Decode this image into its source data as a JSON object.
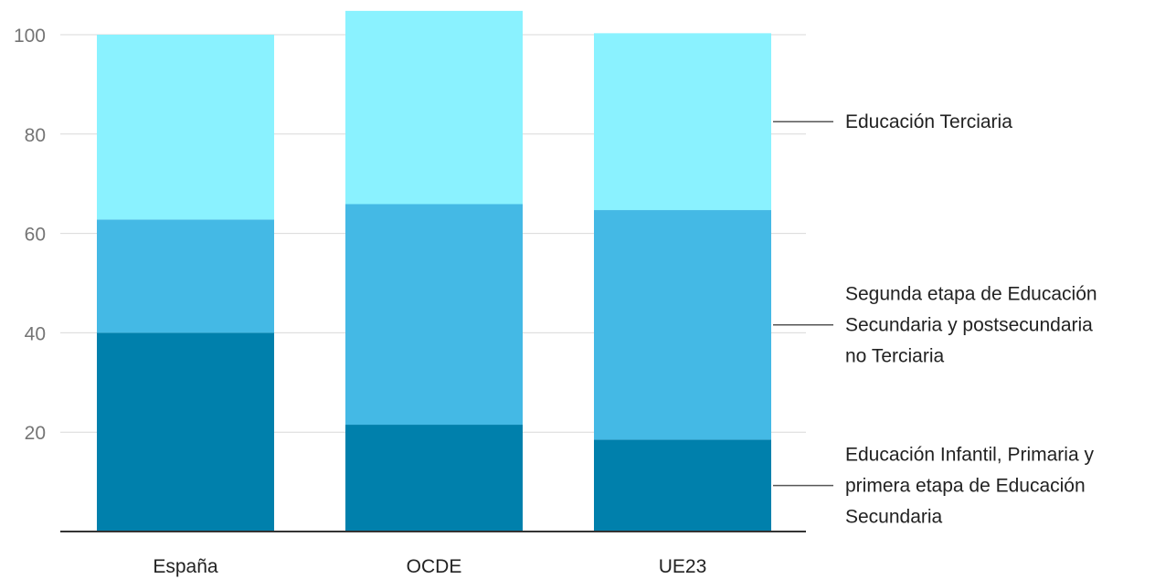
{
  "chart_data": {
    "type": "bar",
    "stacked": true,
    "categories": [
      "España",
      "OCDE",
      "UE23"
    ],
    "series": [
      {
        "name": "Educación Infantil, Primaria y primera etapa de Educación Secundaria",
        "label_lines": [
          "Educación Infantil, Primaria y",
          "primera etapa de Educación",
          "Secundaria"
        ],
        "color": "#0080AC",
        "values": [
          40,
          21.5,
          18.5
        ]
      },
      {
        "name": "Segunda etapa de Educación Secundaria y postsecundaria no Terciaria",
        "label_lines": [
          "Segunda etapa de Educación",
          "Secundaria y postsecundaria",
          "no Terciaria"
        ],
        "color": "#44B9E5",
        "values": [
          22.8,
          44.4,
          46.2
        ]
      },
      {
        "name": "Educación Terciaria",
        "label_lines": [
          "Educación Terciaria"
        ],
        "color": "#8AF2FF",
        "values": [
          37.2,
          38.9,
          35.6
        ]
      }
    ],
    "yticks": [
      20,
      40,
      60,
      80,
      100
    ],
    "ylim": [
      0,
      105
    ],
    "grid": true,
    "legend": "right (inline labels)"
  }
}
